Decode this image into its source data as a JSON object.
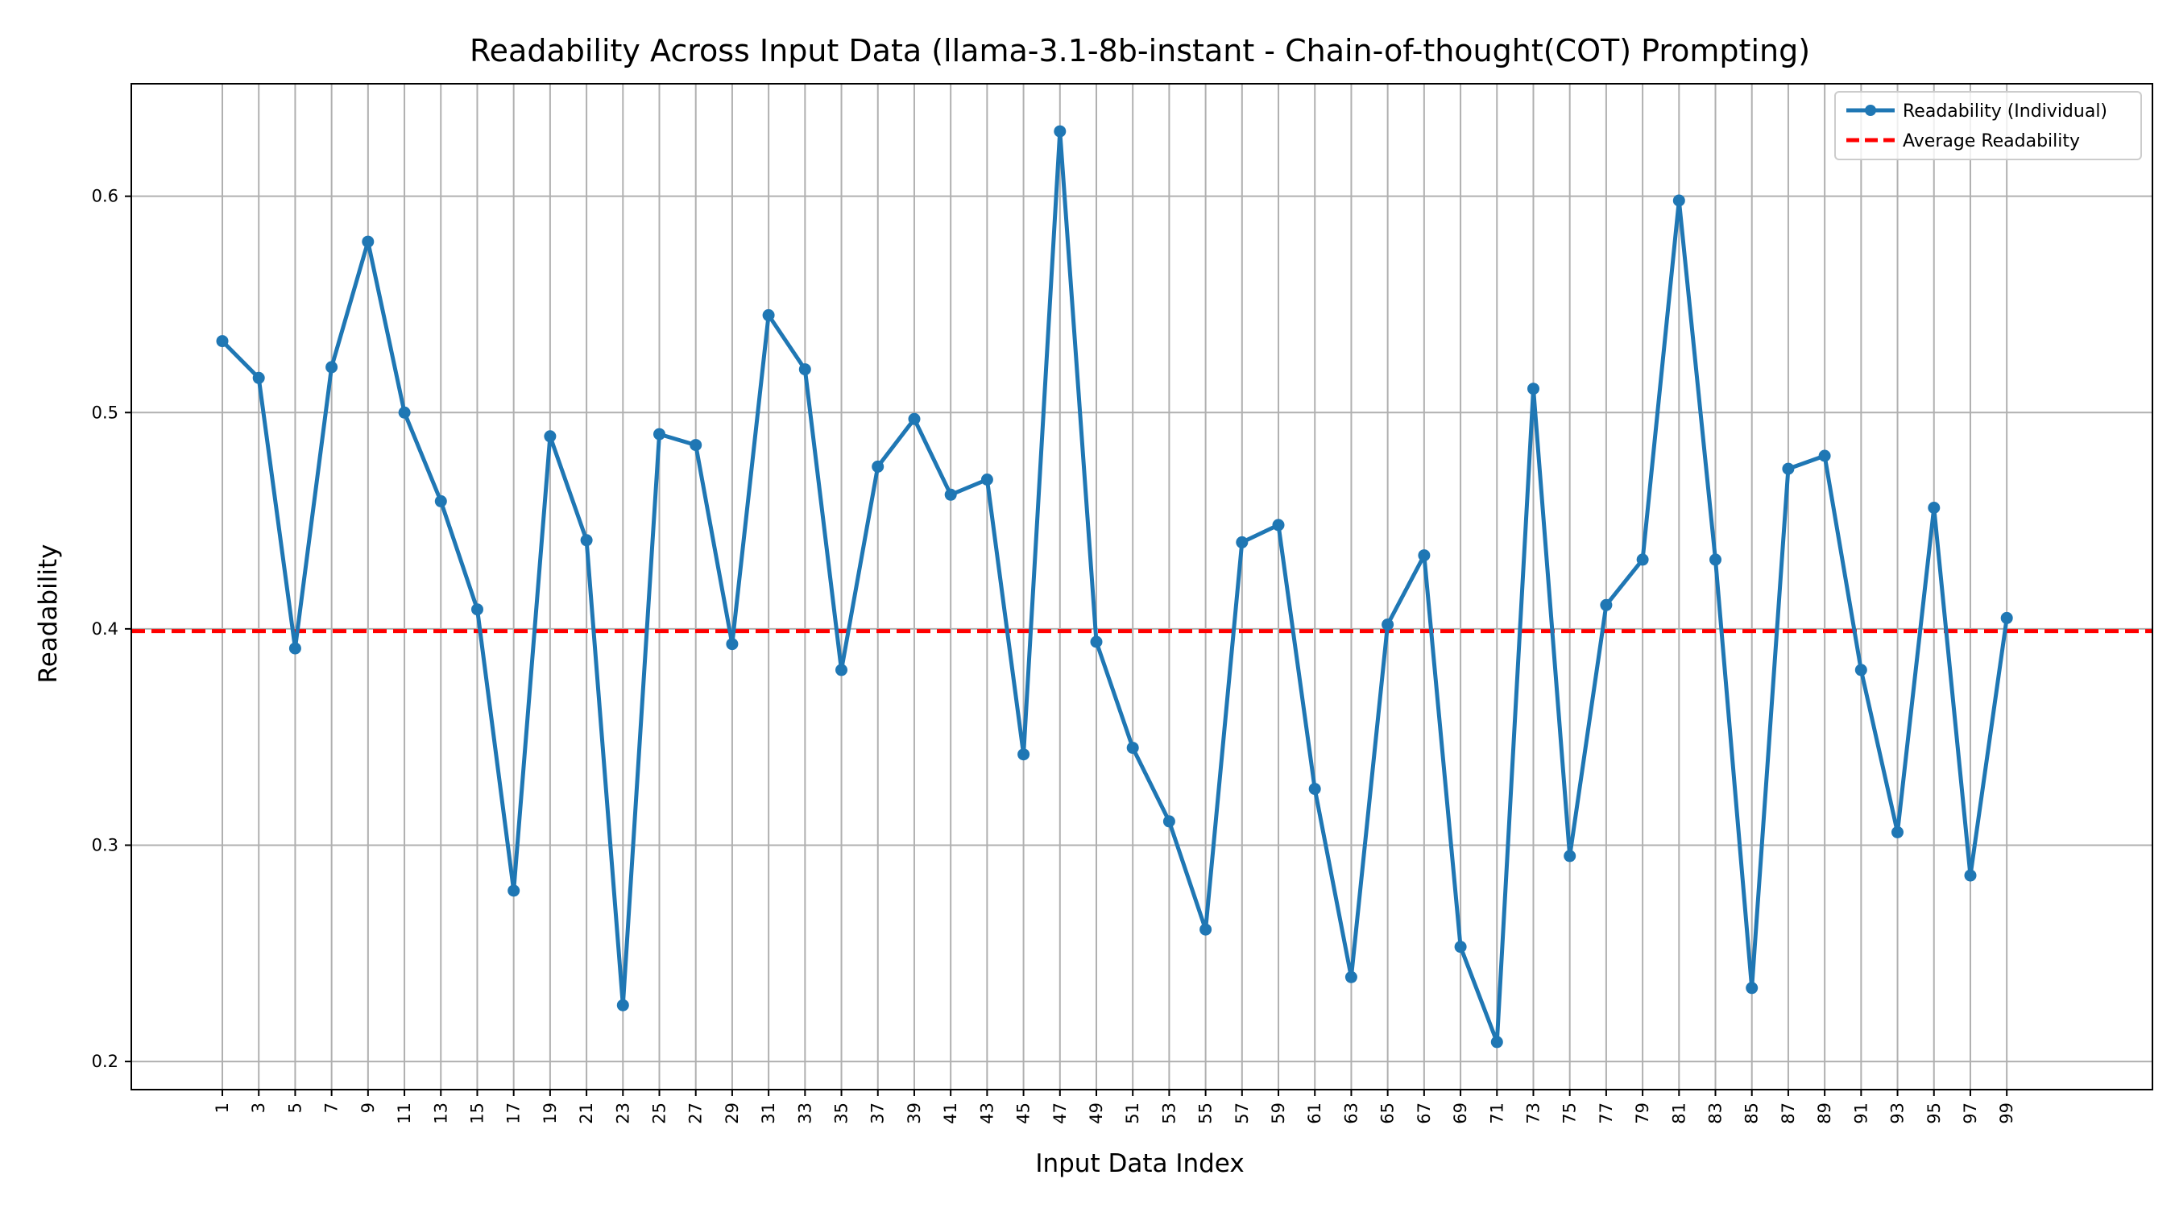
{
  "chart_data": {
    "type": "line",
    "title": "Readability Across Input Data (llama-3.1-8b-instant - Chain-of-thought(COT) Prompting)",
    "xlabel": "Input Data Index",
    "ylabel": "Readability",
    "xlim": [
      -4,
      107
    ],
    "ylim": [
      0.187,
      0.652
    ],
    "yticks": [
      0.2,
      0.3,
      0.4,
      0.5,
      0.6
    ],
    "ytick_labels": [
      "0.2",
      "0.3",
      "0.4",
      "0.5",
      "0.6"
    ],
    "xticks": [
      1,
      3,
      5,
      7,
      9,
      11,
      13,
      15,
      17,
      19,
      21,
      23,
      25,
      27,
      29,
      31,
      33,
      35,
      37,
      39,
      41,
      43,
      45,
      47,
      49,
      51,
      53,
      55,
      57,
      59,
      61,
      63,
      65,
      67,
      69,
      71,
      73,
      75,
      77,
      79,
      81,
      83,
      85,
      87,
      89,
      91,
      93,
      95,
      97,
      99
    ],
    "xtick_labels": [
      "1",
      "3",
      "5",
      "7",
      "9",
      "11",
      "13",
      "15",
      "17",
      "19",
      "21",
      "23",
      "25",
      "27",
      "29",
      "31",
      "33",
      "35",
      "37",
      "39",
      "41",
      "43",
      "45",
      "47",
      "49",
      "51",
      "53",
      "55",
      "57",
      "59",
      "61",
      "63",
      "65",
      "67",
      "69",
      "71",
      "73",
      "75",
      "77",
      "79",
      "81",
      "83",
      "85",
      "87",
      "89",
      "91",
      "93",
      "95",
      "97",
      "99"
    ],
    "grid": true,
    "legend_position": "top-right",
    "series": [
      {
        "name": "Readability (Individual)",
        "color": "#1f77b4",
        "style": "solid-with-markers",
        "x": [
          1,
          3,
          5,
          7,
          9,
          11,
          13,
          15,
          17,
          19,
          21,
          23,
          25,
          27,
          29,
          31,
          33,
          35,
          37,
          39,
          41,
          43,
          45,
          47,
          49,
          51,
          53,
          55,
          57,
          59,
          61,
          63,
          65,
          67,
          69,
          71,
          73,
          75,
          77,
          79,
          81,
          83,
          85,
          87,
          89,
          91,
          93,
          95,
          97,
          99
        ],
        "values": [
          0.533,
          0.516,
          0.391,
          0.521,
          0.579,
          0.5,
          0.459,
          0.409,
          0.279,
          0.489,
          0.441,
          0.226,
          0.49,
          0.485,
          0.393,
          0.545,
          0.52,
          0.381,
          0.475,
          0.497,
          0.462,
          0.469,
          0.342,
          0.63,
          0.394,
          0.345,
          0.311,
          0.261,
          0.44,
          0.448,
          0.326,
          0.239,
          0.402,
          0.434,
          0.253,
          0.209,
          0.511,
          0.295,
          0.411,
          0.432,
          0.598,
          0.432,
          0.234,
          0.474,
          0.48,
          0.381,
          0.306,
          0.456,
          0.286,
          0.405
        ]
      },
      {
        "name": "Average Readability",
        "color": "#ff0000",
        "style": "dashed",
        "value": 0.399
      }
    ]
  }
}
